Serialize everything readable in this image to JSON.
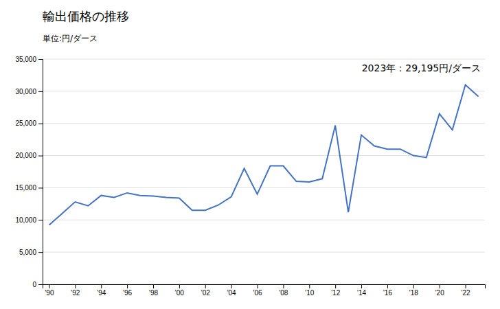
{
  "chart_data": {
    "type": "line",
    "title": "輸出価格の推移",
    "ylabel": "単位:円/ダース",
    "annotation": "2023年：29,195円/ダース",
    "color": "#4472C4",
    "x": [
      1990,
      1991,
      1992,
      1993,
      1994,
      1995,
      1996,
      1997,
      1998,
      1999,
      2000,
      2001,
      2002,
      2003,
      2004,
      2005,
      2006,
      2007,
      2008,
      2009,
      2010,
      2011,
      2012,
      2013,
      2014,
      2015,
      2016,
      2017,
      2018,
      2019,
      2020,
      2021,
      2022,
      2023
    ],
    "values": [
      9200,
      11000,
      12800,
      12200,
      13800,
      13500,
      14200,
      13800,
      13700,
      13500,
      13400,
      11500,
      11500,
      12300,
      13600,
      18000,
      14000,
      18400,
      18400,
      16000,
      15900,
      16400,
      24700,
      11200,
      23200,
      21500,
      21000,
      21000,
      20000,
      19700,
      26500,
      24000,
      31000,
      29195
    ],
    "xlim": [
      1989.5,
      2023.5
    ],
    "xticks": [
      {
        "value": 1990,
        "label": "'90"
      },
      {
        "value": 1992,
        "label": "'92"
      },
      {
        "value": 1994,
        "label": "'94"
      },
      {
        "value": 1996,
        "label": "'96"
      },
      {
        "value": 1998,
        "label": "'98"
      },
      {
        "value": 2000,
        "label": "'00"
      },
      {
        "value": 2002,
        "label": "'02"
      },
      {
        "value": 2004,
        "label": "'04"
      },
      {
        "value": 2006,
        "label": "'06"
      },
      {
        "value": 2008,
        "label": "'08"
      },
      {
        "value": 2010,
        "label": "'10"
      },
      {
        "value": 2012,
        "label": "'12"
      },
      {
        "value": 2014,
        "label": "'14"
      },
      {
        "value": 2016,
        "label": "'16"
      },
      {
        "value": 2018,
        "label": "'18"
      },
      {
        "value": 2020,
        "label": "'20"
      },
      {
        "value": 2022,
        "label": "'22"
      }
    ],
    "ylim": [
      0,
      35000
    ],
    "yticks": [
      0,
      {
        "value": 5000,
        "label": "5,000"
      },
      {
        "value": 10000,
        "label": "10,000"
      },
      {
        "value": 15000,
        "label": "15,000"
      },
      {
        "value": 20000,
        "label": "20,000"
      },
      {
        "value": 25000,
        "label": "25,000"
      },
      {
        "value": 30000,
        "label": "30,000"
      },
      {
        "value": 35000,
        "label": "35,000"
      }
    ],
    "grid": true
  }
}
